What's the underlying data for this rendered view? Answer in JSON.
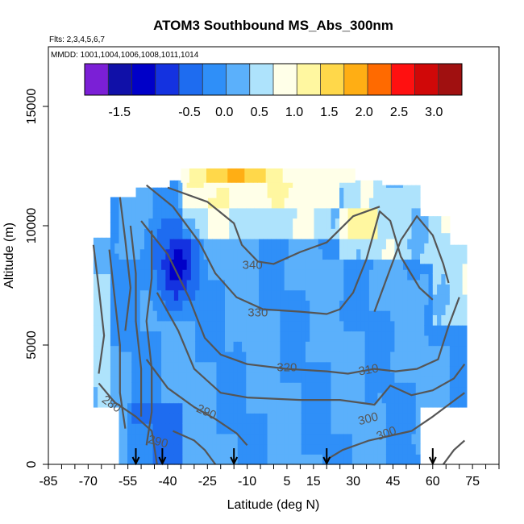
{
  "chart_data": {
    "type": "heatmap",
    "title": "ATOM3 Southbound MS_Abs_300nm",
    "subtitle_flights": "Flts: 2,3,4,5,6,7",
    "subtitle_dates": "MMDD: 1001,1004,1006,1008,1011,1014",
    "xlabel": "Latitude (deg N)",
    "ylabel": "Altitude (m)",
    "xlim": [
      -85,
      85
    ],
    "ylim": [
      0,
      17500
    ],
    "x_ticks": [
      "-85",
      "-70",
      "-55",
      "-40",
      "-25",
      "-10",
      "5",
      "15",
      "30",
      "45",
      "60",
      "75"
    ],
    "x_tick_values": [
      -85,
      -70,
      -55,
      -40,
      -25,
      -10,
      5,
      15,
      30,
      45,
      60,
      75
    ],
    "y_ticks": [
      "0",
      "5000",
      "10000",
      "15000"
    ],
    "y_tick_values": [
      0,
      5000,
      10000,
      15000
    ],
    "colorbar": {
      "range": [
        -2.0,
        3.4
      ],
      "tick_labels": [
        "-1.5",
        "-0.5",
        "0.0",
        "0.5",
        "1.0",
        "1.5",
        "2.0",
        "2.5",
        "3.0"
      ],
      "tick_values": [
        -1.5,
        -0.5,
        0.0,
        0.5,
        1.0,
        1.5,
        2.0,
        2.5,
        3.0
      ],
      "colors": [
        "#7b1fd6",
        "#1010a8",
        "#0000c8",
        "#1432e0",
        "#1e6cf0",
        "#2f8ff8",
        "#5bb0fb",
        "#aee3fc",
        "#ffffe8",
        "#fff7a0",
        "#ffd84a",
        "#ffae14",
        "#ff6a00",
        "#ff1010",
        "#d00808",
        "#a01010"
      ]
    },
    "contour_labels": [
      "340",
      "330",
      "320",
      "310",
      "300",
      "300",
      "290",
      "280",
      "290"
    ],
    "contour_label_values": [
      340,
      330,
      320,
      310,
      300,
      300,
      290,
      280,
      290
    ],
    "profile_markers_latitude": [
      -52,
      -42,
      -15,
      20,
      60
    ]
  }
}
